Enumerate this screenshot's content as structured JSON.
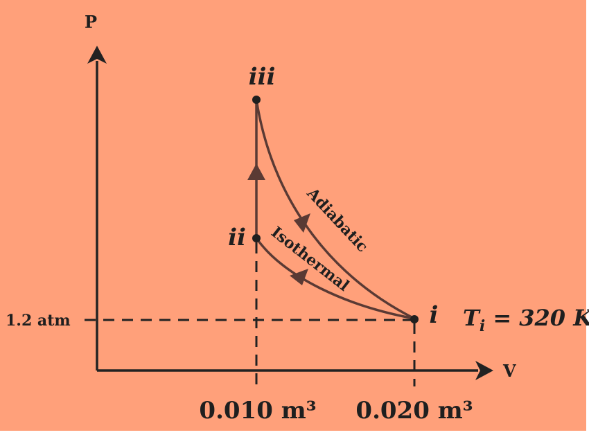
{
  "colors": {
    "background": "#ffa07a",
    "axis": "#222222",
    "curve": "#5a3a34",
    "text": "#1f1f1f"
  },
  "axes": {
    "y_label": "P",
    "x_label": "V"
  },
  "ticks": {
    "pressure": "1.2 atm",
    "volume_1": "0.010 m³",
    "volume_2": "0.020 m³"
  },
  "states": {
    "i": "i",
    "ii": "ii",
    "iii": "iii"
  },
  "curves": {
    "adiabatic": "Adiabatic",
    "isothermal": "Isothermal"
  },
  "annotation": {
    "temp_symbol": "T",
    "temp_subscript": "i",
    "temp_value": " = 320 K"
  }
}
